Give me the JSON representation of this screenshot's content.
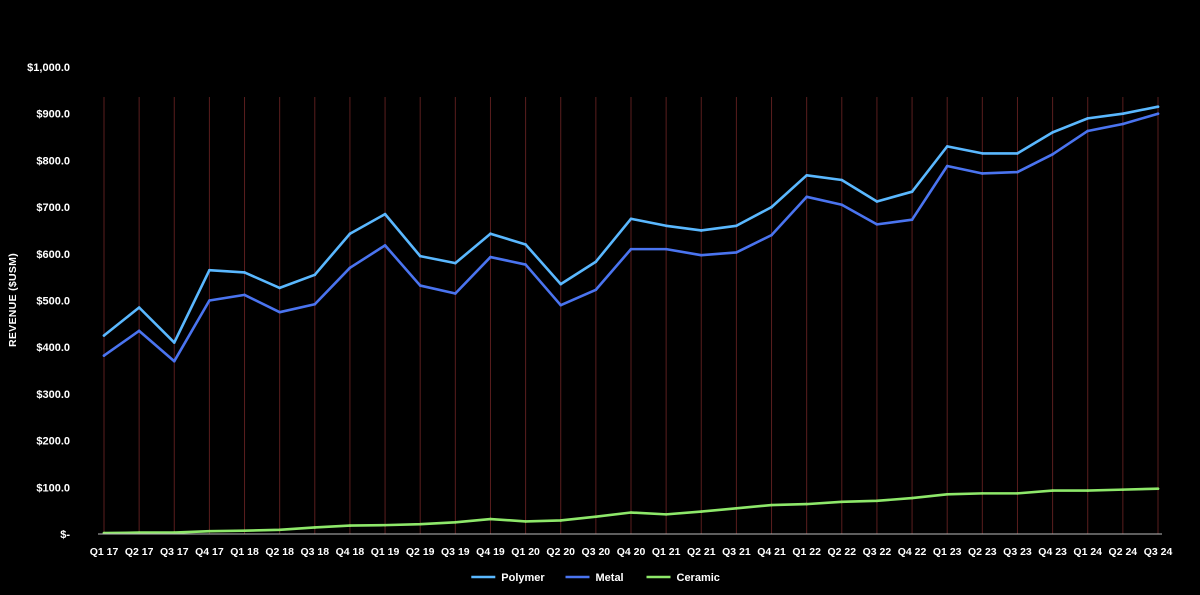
{
  "chart_data": {
    "type": "line",
    "title": "",
    "xlabel": "",
    "ylabel": "REVENUE ($USM)",
    "ylim": [
      0,
      1000
    ],
    "yticks": [
      0,
      100,
      200,
      300,
      400,
      500,
      600,
      700,
      800,
      900,
      1000
    ],
    "ytick_labels": [
      "$-",
      "$100.0",
      "$200.0",
      "$300.0",
      "$400.0",
      "$500.0",
      "$600.0",
      "$700.0",
      "$800.0",
      "$900.0",
      "$1,000.0"
    ],
    "categories": [
      "Q1 17",
      "Q2 17",
      "Q3 17",
      "Q4 17",
      "Q1 18",
      "Q2 18",
      "Q3 18",
      "Q4 18",
      "Q1 19",
      "Q2 19",
      "Q3 19",
      "Q4 19",
      "Q1 20",
      "Q2 20",
      "Q3 20",
      "Q4 20",
      "Q1 21",
      "Q2 21",
      "Q3 21",
      "Q4 21",
      "Q1 22",
      "Q2 22",
      "Q3 22",
      "Q4 22",
      "Q1 23",
      "Q2 23",
      "Q3 23",
      "Q4 23",
      "Q1 24",
      "Q2 24",
      "Q3 24"
    ],
    "series": [
      {
        "name": "Polymer",
        "color": "#5ab8ff",
        "values": [
          425,
          485,
          410,
          565,
          560,
          527,
          555,
          643,
          685,
          595,
          580,
          643,
          620,
          535,
          583,
          675,
          660,
          650,
          660,
          700,
          768,
          758,
          712,
          733,
          830,
          815,
          815,
          860,
          890,
          900,
          915
        ]
      },
      {
        "name": "Metal",
        "color": "#4a74f0",
        "values": [
          382,
          435,
          370,
          500,
          512,
          475,
          492,
          570,
          618,
          532,
          515,
          593,
          577,
          490,
          523,
          610,
          610,
          597,
          603,
          640,
          722,
          705,
          663,
          673,
          788,
          772,
          775,
          813,
          863,
          878,
          900
        ]
      },
      {
        "name": "Ceramic",
        "color": "#8ee86a",
        "values": [
          2,
          3,
          3,
          6,
          7,
          9,
          14,
          18,
          19,
          21,
          25,
          32,
          27,
          29,
          37,
          46,
          42,
          48,
          55,
          62,
          64,
          69,
          71,
          77,
          85,
          87,
          87,
          93,
          93,
          95,
          97
        ]
      }
    ],
    "grid": {
      "vertical": true,
      "horizontal": false,
      "color": "#5a1e1e"
    },
    "legend": {
      "placement": "bottom-center"
    }
  }
}
